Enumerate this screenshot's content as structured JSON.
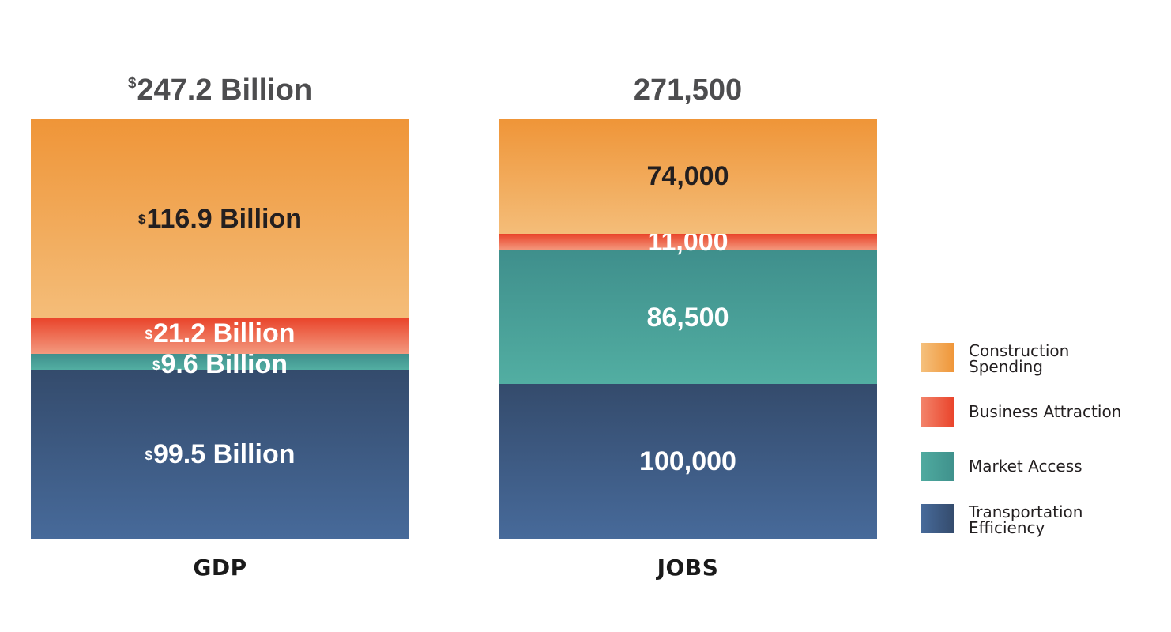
{
  "chart_data": {
    "type": "bar",
    "stacked": true,
    "categories": [
      "GDP",
      "JOBS"
    ],
    "totals": [
      {
        "currency": "$",
        "text": "247.2 Billion"
      },
      {
        "currency": "",
        "text": "271,500"
      }
    ],
    "series": [
      {
        "name": "Transportation Efficiency",
        "color": "#3a5680",
        "values": [
          99.5,
          100000
        ],
        "labels": [
          {
            "currency": "$",
            "text": "99.5 Billion"
          },
          {
            "currency": "",
            "text": "100,000"
          }
        ]
      },
      {
        "name": "Market Access",
        "color": "#48a19c",
        "values": [
          9.6,
          86500
        ],
        "labels": [
          {
            "currency": "$",
            "text": "9.6 Billion"
          },
          {
            "currency": "",
            "text": "86,500"
          }
        ]
      },
      {
        "name": "Business Attraction",
        "color": "#ea5234",
        "values": [
          21.2,
          11000
        ],
        "labels": [
          {
            "currency": "$",
            "text": "21.2 Billion"
          },
          {
            "currency": "",
            "text": "11,000"
          }
        ]
      },
      {
        "name": "Construction Spending",
        "color": "#f2a857",
        "values": [
          116.9,
          74000
        ],
        "labels": [
          {
            "currency": "$",
            "text": "116.9 Billion"
          },
          {
            "currency": "",
            "text": "74,000"
          }
        ]
      }
    ],
    "legend_position": "right",
    "grid": false,
    "legend": [
      {
        "line1": "Construction",
        "line2": "Spending",
        "color": "#f2a857"
      },
      {
        "line1": "Business Attraction",
        "line2": "",
        "color": "#ea5234"
      },
      {
        "line1": "Market Access",
        "line2": "",
        "color": "#48a19c"
      },
      {
        "line1": "Transportation",
        "line2": "Efficiency",
        "color": "#3a5680"
      }
    ]
  }
}
